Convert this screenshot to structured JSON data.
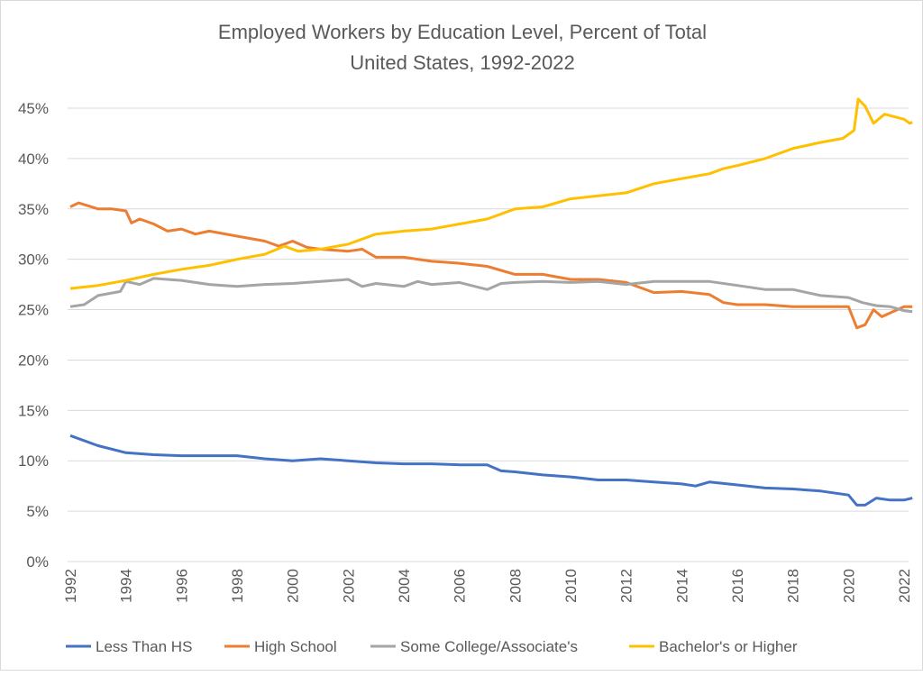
{
  "chart_data": {
    "type": "line",
    "title": "Employed Workers by Education Level, Percent of Total",
    "subtitle": "United States, 1992-2022",
    "xlabel": "",
    "ylabel": "",
    "xlim": [
      1992,
      2022.3
    ],
    "ylim": [
      0,
      45
    ],
    "grid": true,
    "legend_position": "bottom",
    "x_ticks": [
      "1992",
      "1994",
      "1996",
      "1998",
      "2000",
      "2002",
      "2004",
      "2006",
      "2008",
      "2010",
      "2012",
      "2014",
      "2016",
      "2018",
      "2020",
      "2022"
    ],
    "y_ticks": [
      "0%",
      "5%",
      "10%",
      "15%",
      "20%",
      "25%",
      "30%",
      "35%",
      "40%",
      "45%"
    ],
    "series": [
      {
        "name": "Less Than HS",
        "color": "#4472c4",
        "points": [
          [
            1992,
            12.5
          ],
          [
            1993,
            11.5
          ],
          [
            1994,
            10.8
          ],
          [
            1995,
            10.6
          ],
          [
            1996,
            10.5
          ],
          [
            1997,
            10.5
          ],
          [
            1998,
            10.5
          ],
          [
            1999,
            10.2
          ],
          [
            2000,
            10.0
          ],
          [
            2001,
            10.2
          ],
          [
            2002,
            10.0
          ],
          [
            2003,
            9.8
          ],
          [
            2004,
            9.7
          ],
          [
            2005,
            9.7
          ],
          [
            2006,
            9.6
          ],
          [
            2007,
            9.6
          ],
          [
            2007.5,
            9.0
          ],
          [
            2008,
            8.9
          ],
          [
            2009,
            8.6
          ],
          [
            2010,
            8.4
          ],
          [
            2011,
            8.1
          ],
          [
            2012,
            8.1
          ],
          [
            2013,
            7.9
          ],
          [
            2014,
            7.7
          ],
          [
            2014.5,
            7.5
          ],
          [
            2015,
            7.9
          ],
          [
            2016,
            7.6
          ],
          [
            2017,
            7.3
          ],
          [
            2018,
            7.2
          ],
          [
            2019,
            7.0
          ],
          [
            2020,
            6.6
          ],
          [
            2020.3,
            5.6
          ],
          [
            2020.6,
            5.6
          ],
          [
            2021,
            6.3
          ],
          [
            2021.5,
            6.1
          ],
          [
            2022,
            6.1
          ],
          [
            2022.3,
            6.3
          ]
        ]
      },
      {
        "name": "High School",
        "color": "#ed7d31",
        "points": [
          [
            1992,
            35.2
          ],
          [
            1992.3,
            35.6
          ],
          [
            1993,
            35.0
          ],
          [
            1993.5,
            35.0
          ],
          [
            1994,
            34.8
          ],
          [
            1994.2,
            33.6
          ],
          [
            1994.5,
            34.0
          ],
          [
            1995,
            33.5
          ],
          [
            1995.5,
            32.8
          ],
          [
            1996,
            33.0
          ],
          [
            1996.5,
            32.5
          ],
          [
            1997,
            32.8
          ],
          [
            1998,
            32.3
          ],
          [
            1999,
            31.8
          ],
          [
            1999.5,
            31.3
          ],
          [
            2000,
            31.8
          ],
          [
            2000.5,
            31.2
          ],
          [
            2001,
            31.0
          ],
          [
            2002,
            30.8
          ],
          [
            2002.5,
            31.0
          ],
          [
            2003,
            30.2
          ],
          [
            2004,
            30.2
          ],
          [
            2005,
            29.8
          ],
          [
            2006,
            29.6
          ],
          [
            2007,
            29.3
          ],
          [
            2008,
            28.5
          ],
          [
            2009,
            28.5
          ],
          [
            2010,
            28.0
          ],
          [
            2011,
            28.0
          ],
          [
            2012,
            27.7
          ],
          [
            2012.5,
            27.2
          ],
          [
            2013,
            26.7
          ],
          [
            2014,
            26.8
          ],
          [
            2015,
            26.5
          ],
          [
            2015.5,
            25.7
          ],
          [
            2016,
            25.5
          ],
          [
            2017,
            25.5
          ],
          [
            2018,
            25.3
          ],
          [
            2019,
            25.3
          ],
          [
            2020,
            25.3
          ],
          [
            2020.3,
            23.2
          ],
          [
            2020.6,
            23.5
          ],
          [
            2020.9,
            25.0
          ],
          [
            2021.2,
            24.3
          ],
          [
            2021.6,
            24.8
          ],
          [
            2022,
            25.3
          ],
          [
            2022.3,
            25.3
          ]
        ]
      },
      {
        "name": "Some College/Associate's",
        "color": "#a5a5a5",
        "points": [
          [
            1992,
            25.3
          ],
          [
            1992.5,
            25.5
          ],
          [
            1993,
            26.4
          ],
          [
            1993.8,
            26.8
          ],
          [
            1994,
            27.8
          ],
          [
            1994.5,
            27.5
          ],
          [
            1995,
            28.1
          ],
          [
            1996,
            27.9
          ],
          [
            1997,
            27.5
          ],
          [
            1998,
            27.3
          ],
          [
            1999,
            27.5
          ],
          [
            2000,
            27.6
          ],
          [
            2001,
            27.8
          ],
          [
            2002,
            28.0
          ],
          [
            2002.5,
            27.3
          ],
          [
            2003,
            27.6
          ],
          [
            2004,
            27.3
          ],
          [
            2004.5,
            27.8
          ],
          [
            2005,
            27.5
          ],
          [
            2006,
            27.7
          ],
          [
            2007,
            27.0
          ],
          [
            2007.5,
            27.6
          ],
          [
            2008,
            27.7
          ],
          [
            2009,
            27.8
          ],
          [
            2010,
            27.7
          ],
          [
            2011,
            27.8
          ],
          [
            2012,
            27.5
          ],
          [
            2013,
            27.8
          ],
          [
            2014,
            27.8
          ],
          [
            2015,
            27.8
          ],
          [
            2016,
            27.4
          ],
          [
            2017,
            27.0
          ],
          [
            2018,
            27.0
          ],
          [
            2019,
            26.4
          ],
          [
            2020,
            26.2
          ],
          [
            2020.5,
            25.7
          ],
          [
            2021,
            25.4
          ],
          [
            2021.5,
            25.3
          ],
          [
            2022,
            24.9
          ],
          [
            2022.3,
            24.8
          ]
        ]
      },
      {
        "name": "Bachelor's or Higher",
        "color": "#ffc000",
        "points": [
          [
            1992,
            27.1
          ],
          [
            1993,
            27.4
          ],
          [
            1994,
            27.9
          ],
          [
            1995,
            28.5
          ],
          [
            1996,
            29.0
          ],
          [
            1997,
            29.4
          ],
          [
            1998,
            30.0
          ],
          [
            1999,
            30.5
          ],
          [
            1999.7,
            31.3
          ],
          [
            2000.2,
            30.8
          ],
          [
            2001,
            31.0
          ],
          [
            2002,
            31.5
          ],
          [
            2003,
            32.5
          ],
          [
            2004,
            32.8
          ],
          [
            2005,
            33.0
          ],
          [
            2006,
            33.5
          ],
          [
            2007,
            34.0
          ],
          [
            2008,
            35.0
          ],
          [
            2009,
            35.2
          ],
          [
            2010,
            36.0
          ],
          [
            2011,
            36.3
          ],
          [
            2012,
            36.6
          ],
          [
            2013,
            37.5
          ],
          [
            2014,
            38.0
          ],
          [
            2015,
            38.5
          ],
          [
            2015.5,
            39.0
          ],
          [
            2016,
            39.3
          ],
          [
            2017,
            40.0
          ],
          [
            2018,
            41.0
          ],
          [
            2019,
            41.6
          ],
          [
            2019.8,
            42.0
          ],
          [
            2020.2,
            42.8
          ],
          [
            2020.35,
            45.9
          ],
          [
            2020.6,
            45.2
          ],
          [
            2020.9,
            43.5
          ],
          [
            2021.3,
            44.4
          ],
          [
            2022,
            43.9
          ],
          [
            2022.2,
            43.5
          ],
          [
            2022.3,
            43.6
          ]
        ]
      }
    ]
  }
}
